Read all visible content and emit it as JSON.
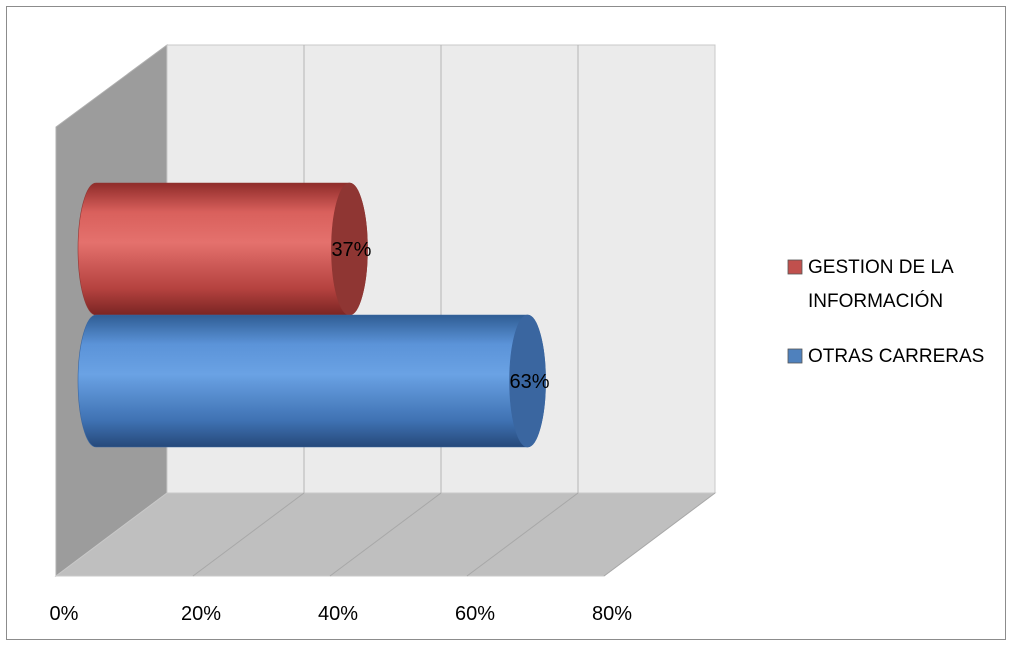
{
  "chart_data": {
    "type": "bar",
    "orientation": "horizontal",
    "style": "3d-cylinder",
    "series": [
      {
        "name": "GESTION DE LA INFORMACIÓN",
        "value": 37,
        "label": "37%",
        "color": "#c0504d"
      },
      {
        "name": "OTRAS CARRERAS",
        "value": 63,
        "label": "63%",
        "color": "#4f81bd"
      }
    ],
    "x_ticks": [
      "0%",
      "20%",
      "40%",
      "60%",
      "80%"
    ],
    "xlim": [
      0,
      80
    ],
    "grid": true,
    "legend_position": "right",
    "legend": [
      {
        "lines": [
          "GESTION DE LA",
          "INFORMACIÓN"
        ],
        "color": "#c0504d"
      },
      {
        "lines": [
          "OTRAS CARRERAS"
        ],
        "color": "#4f81bd"
      }
    ]
  }
}
